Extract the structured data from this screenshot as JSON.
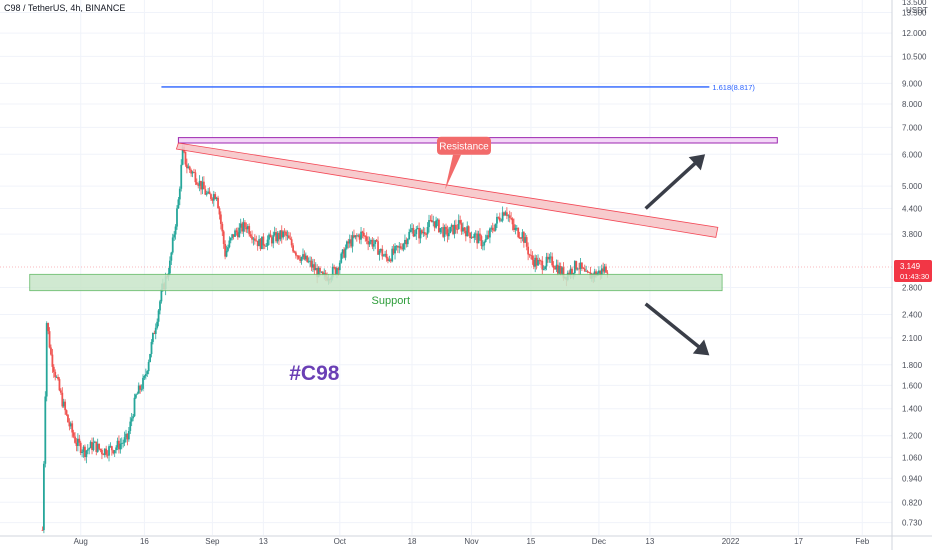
{
  "header": {
    "symbol_label": "C98 / TetherUS, 4h, BINANCE"
  },
  "price_scale": {
    "currency": "USDT",
    "top_partial": "13.500"
  },
  "price_tag": {
    "price": "3.149",
    "countdown": "01:43:30"
  },
  "chart_data": {
    "type": "candlestick",
    "title": "C98 / TetherUS, 4h, BINANCE",
    "y_scale": "log",
    "ylim": [
      0.68,
      14.5
    ],
    "yticks": [
      "13.500",
      "12.000",
      "10.500",
      "9.000",
      "8.000",
      "7.000",
      "6.000",
      "5.000",
      "4.400",
      "3.800",
      "2.800",
      "2.400",
      "2.100",
      "1.800",
      "1.600",
      "1.400",
      "1.200",
      "1.060",
      "0.940",
      "0.820",
      "0.730"
    ],
    "xticks": [
      {
        "label": "Aug",
        "date": "2021-08-01"
      },
      {
        "label": "16",
        "date": "2021-08-16"
      },
      {
        "label": "Sep",
        "date": "2021-09-01"
      },
      {
        "label": "13",
        "date": "2021-09-13"
      },
      {
        "label": "Oct",
        "date": "2021-10-01"
      },
      {
        "label": "18",
        "date": "2021-10-18"
      },
      {
        "label": "Nov",
        "date": "2021-11-01"
      },
      {
        "label": "15",
        "date": "2021-11-15"
      },
      {
        "label": "Dec",
        "date": "2021-12-01"
      },
      {
        "label": "13",
        "date": "2021-12-13"
      },
      {
        "label": "2022",
        "date": "2022-01-01"
      },
      {
        "label": "17",
        "date": "2022-01-17"
      },
      {
        "label": "Feb",
        "date": "2022-02-01"
      }
    ],
    "price_path": [
      [
        "2021-07-23",
        0.7
      ],
      [
        "2021-07-24",
        2.3
      ],
      [
        "2021-07-25",
        1.9
      ],
      [
        "2021-07-27",
        1.55
      ],
      [
        "2021-07-29",
        1.3
      ],
      [
        "2021-07-31",
        1.15
      ],
      [
        "2021-08-02",
        1.1
      ],
      [
        "2021-08-04",
        1.14
      ],
      [
        "2021-08-06",
        1.1
      ],
      [
        "2021-08-09",
        1.12
      ],
      [
        "2021-08-12",
        1.18
      ],
      [
        "2021-08-14",
        1.5
      ],
      [
        "2021-08-16",
        1.65
      ],
      [
        "2021-08-18",
        2.1
      ],
      [
        "2021-08-20",
        2.7
      ],
      [
        "2021-08-22",
        3.2
      ],
      [
        "2021-08-24",
        4.6
      ],
      [
        "2021-08-25",
        6.1
      ],
      [
        "2021-08-26",
        5.6
      ],
      [
        "2021-08-28",
        5.3
      ],
      [
        "2021-08-31",
        4.7
      ],
      [
        "2021-09-02",
        4.8
      ],
      [
        "2021-09-04",
        3.4
      ],
      [
        "2021-09-06",
        3.8
      ],
      [
        "2021-09-09",
        4.0
      ],
      [
        "2021-09-12",
        3.6
      ],
      [
        "2021-09-15",
        3.7
      ],
      [
        "2021-09-18",
        3.8
      ],
      [
        "2021-09-21",
        3.4
      ],
      [
        "2021-09-24",
        3.2
      ],
      [
        "2021-09-27",
        2.95
      ],
      [
        "2021-09-30",
        3.1
      ],
      [
        "2021-10-03",
        3.6
      ],
      [
        "2021-10-06",
        3.8
      ],
      [
        "2021-10-09",
        3.6
      ],
      [
        "2021-10-12",
        3.3
      ],
      [
        "2021-10-15",
        3.5
      ],
      [
        "2021-10-18",
        3.9
      ],
      [
        "2021-10-20",
        3.8
      ],
      [
        "2021-10-23",
        4.1
      ],
      [
        "2021-10-26",
        3.8
      ],
      [
        "2021-10-29",
        4.0
      ],
      [
        "2021-11-01",
        3.8
      ],
      [
        "2021-11-04",
        3.6
      ],
      [
        "2021-11-07",
        4.1
      ],
      [
        "2021-11-09",
        4.4
      ],
      [
        "2021-11-11",
        3.9
      ],
      [
        "2021-11-13",
        3.8
      ],
      [
        "2021-11-15",
        3.3
      ],
      [
        "2021-11-17",
        3.2
      ],
      [
        "2021-11-20",
        3.25
      ],
      [
        "2021-11-23",
        3.0
      ],
      [
        "2021-11-26",
        3.2
      ],
      [
        "2021-11-28",
        2.98
      ],
      [
        "2021-12-01",
        3.05
      ],
      [
        "2021-12-03",
        3.149
      ]
    ],
    "annotations": [
      {
        "type": "horizontal_line",
        "label": "1.618(8.817)",
        "price": 8.817,
        "from": "2021-08-20",
        "to": "2021-12-27",
        "color": "#2962ff"
      },
      {
        "type": "rectangle",
        "name": "top-zone",
        "price_top": 6.6,
        "price_bottom": 6.4,
        "from": "2021-08-24",
        "to": "2022-01-12",
        "color": "#9c27b0"
      },
      {
        "type": "trendline-band",
        "name": "Resistance",
        "start": {
          "date": "2021-08-24",
          "price": 6.4
        },
        "end": {
          "date": "2021-12-29",
          "price": 3.95
        },
        "color": "#f23645"
      },
      {
        "type": "rectangle",
        "name": "Support",
        "price_top": 3.02,
        "price_bottom": 2.75,
        "from": "2021-07-20",
        "to": "2021-12-30",
        "color": "#4caf50"
      },
      {
        "type": "arrow",
        "direction": "up",
        "from": {
          "date": "2021-12-12",
          "price": 4.4
        },
        "to": {
          "date": "2021-12-26",
          "price": 6.0
        }
      },
      {
        "type": "arrow",
        "direction": "down",
        "from": {
          "date": "2021-12-12",
          "price": 2.55
        },
        "to": {
          "date": "2021-12-27",
          "price": 1.9
        }
      }
    ],
    "labels": {
      "resistance_label": "Resistance",
      "support_label": "Support",
      "ticker_text": "#C98"
    },
    "colors": {
      "up": "#26a69a",
      "down": "#ef5350",
      "resistance_fill": "#f7c6c8",
      "support_fill": "#c8e6c9",
      "top_zone_fill": "#f3d7f7",
      "ticker_text": "#6a3fb5",
      "support_label": "#2e9d3a",
      "price_tag": "#f23645",
      "arrow": "#3a3e48"
    }
  }
}
